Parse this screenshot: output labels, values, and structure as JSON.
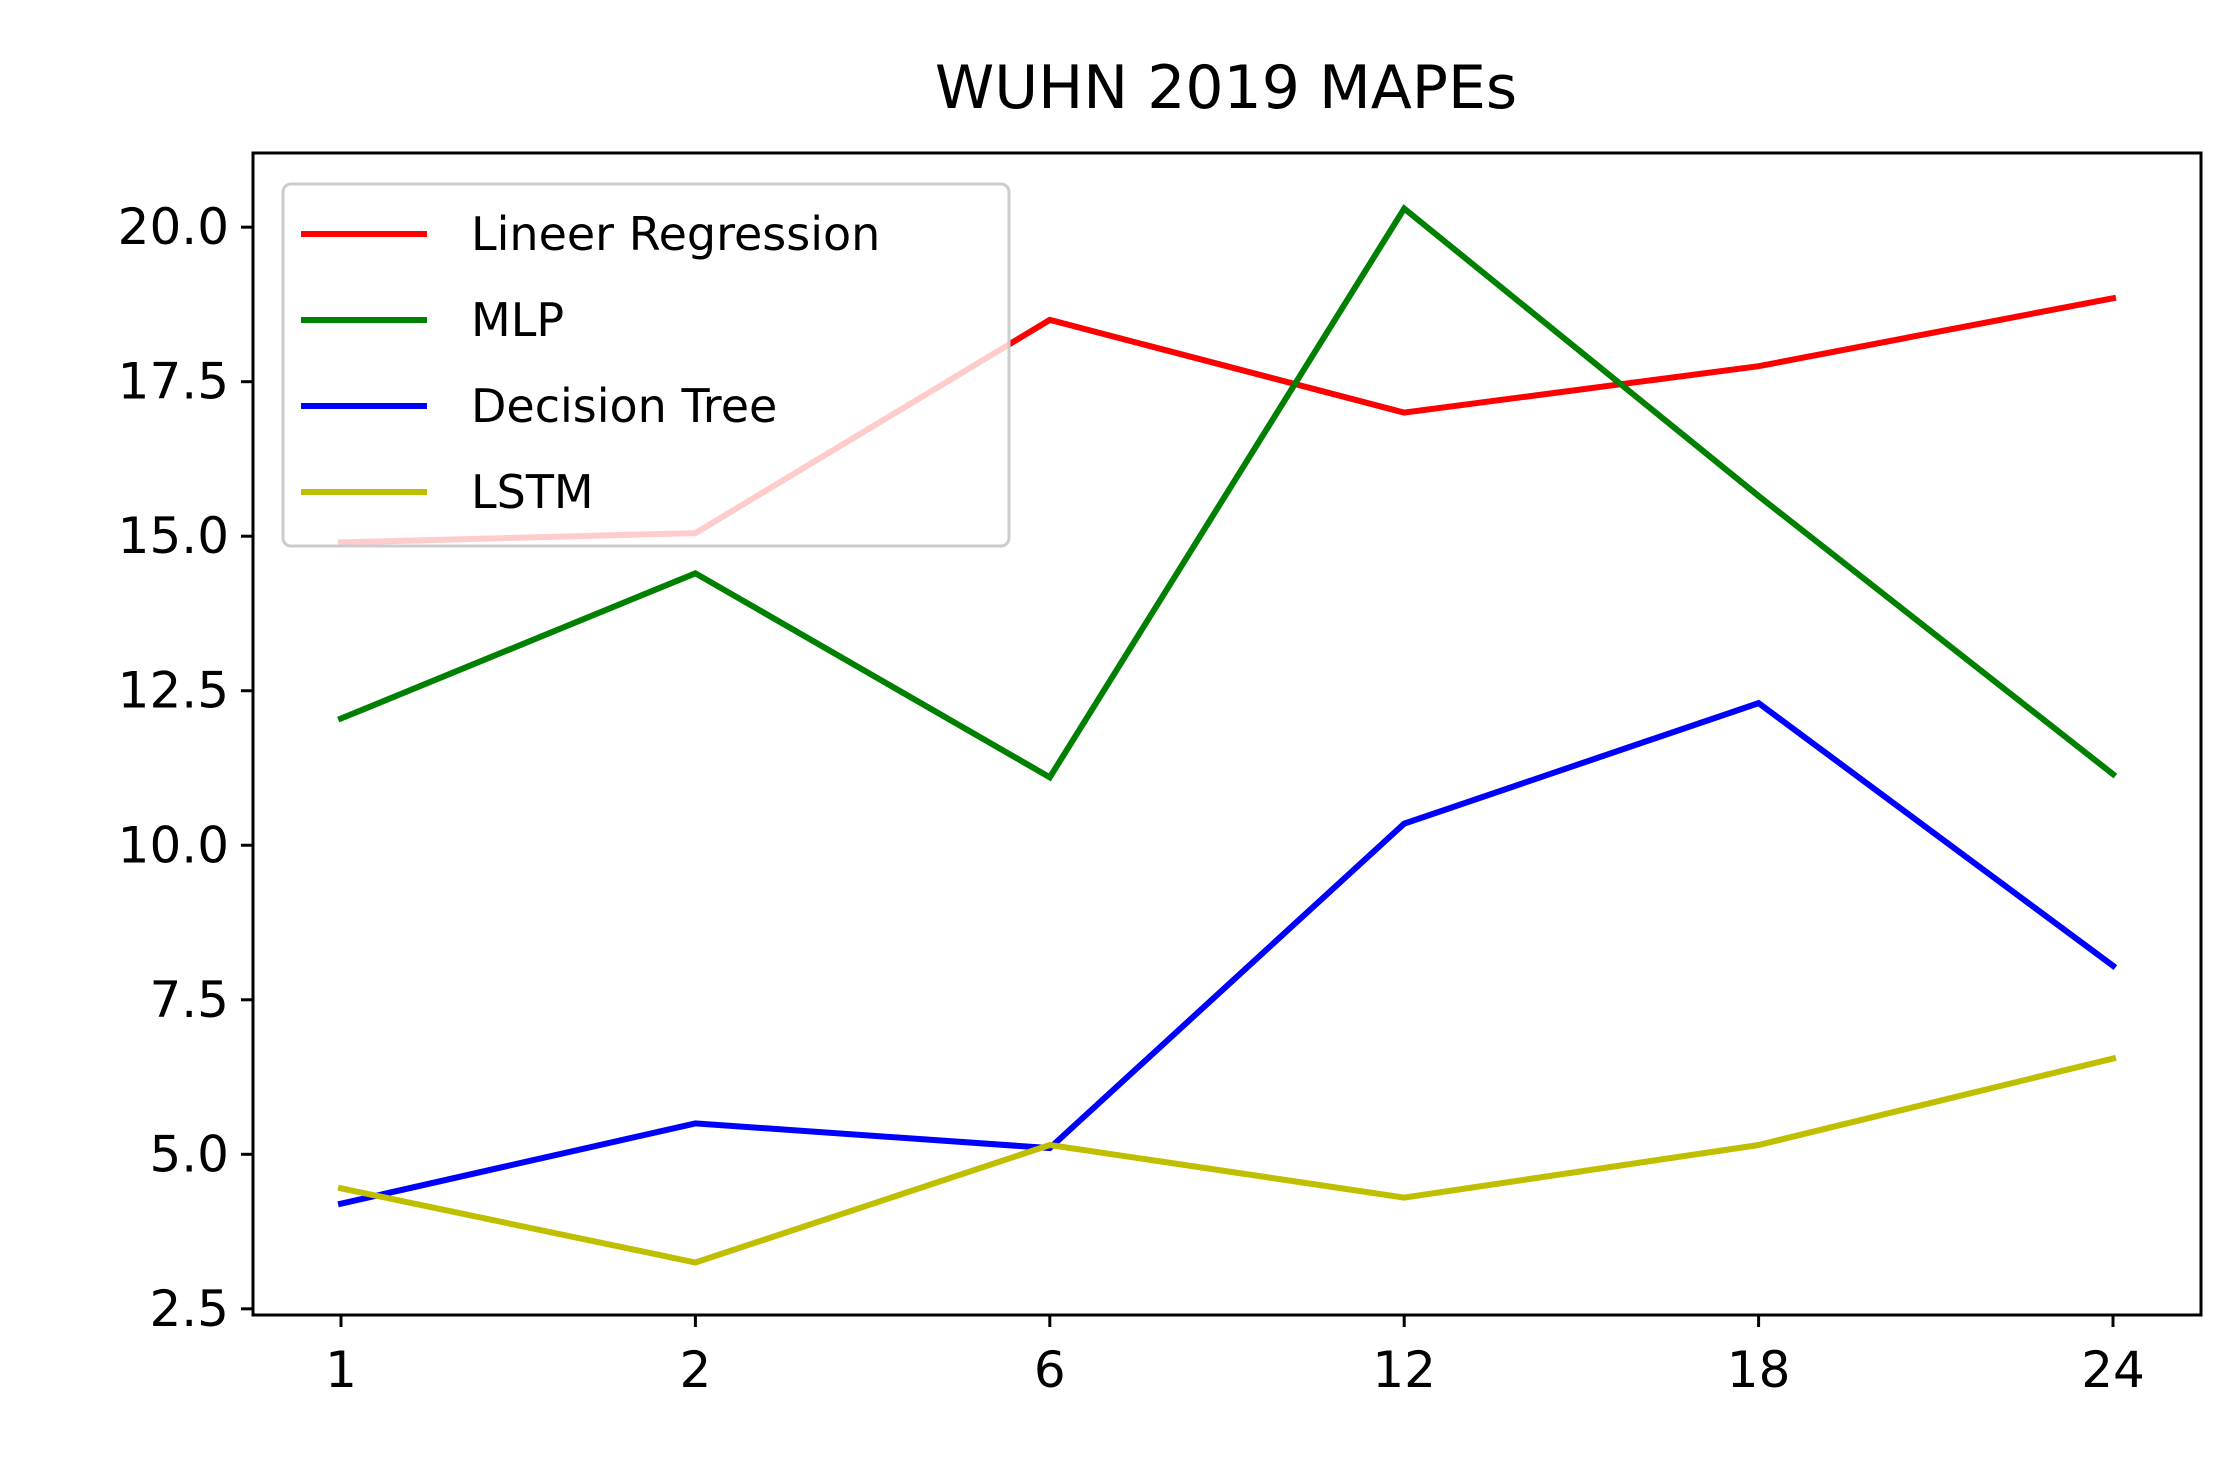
{
  "chart_data": {
    "type": "line",
    "title": "WUHN  2019 MAPEs",
    "xlabel": "",
    "ylabel": "",
    "categories": [
      "1",
      "2",
      "6",
      "12",
      "18",
      "24"
    ],
    "ylim": [
      2.4,
      21.2
    ],
    "yticks": [
      "2.5",
      "5.0",
      "7.5",
      "10.0",
      "12.5",
      "15.0",
      "17.5",
      "20.0"
    ],
    "ytick_values": [
      2.5,
      5.0,
      7.5,
      10.0,
      12.5,
      15.0,
      17.5,
      20.0
    ],
    "grid": false,
    "legend_position": "upper-left",
    "series": [
      {
        "name": "Lineer Regression",
        "color": "#ff0000",
        "values": [
          14.9,
          15.05,
          18.5,
          17.0,
          17.75,
          18.85
        ]
      },
      {
        "name": "MLP",
        "color": "#008000",
        "values": [
          12.05,
          14.4,
          11.1,
          20.3,
          15.65,
          11.15
        ]
      },
      {
        "name": "Decision Tree",
        "color": "#0000ff",
        "values": [
          4.2,
          5.5,
          5.1,
          10.35,
          12.3,
          8.05
        ]
      },
      {
        "name": "LSTM",
        "color": "#bfbf00",
        "values": [
          4.45,
          3.25,
          5.15,
          4.3,
          5.15,
          6.55
        ]
      }
    ]
  }
}
